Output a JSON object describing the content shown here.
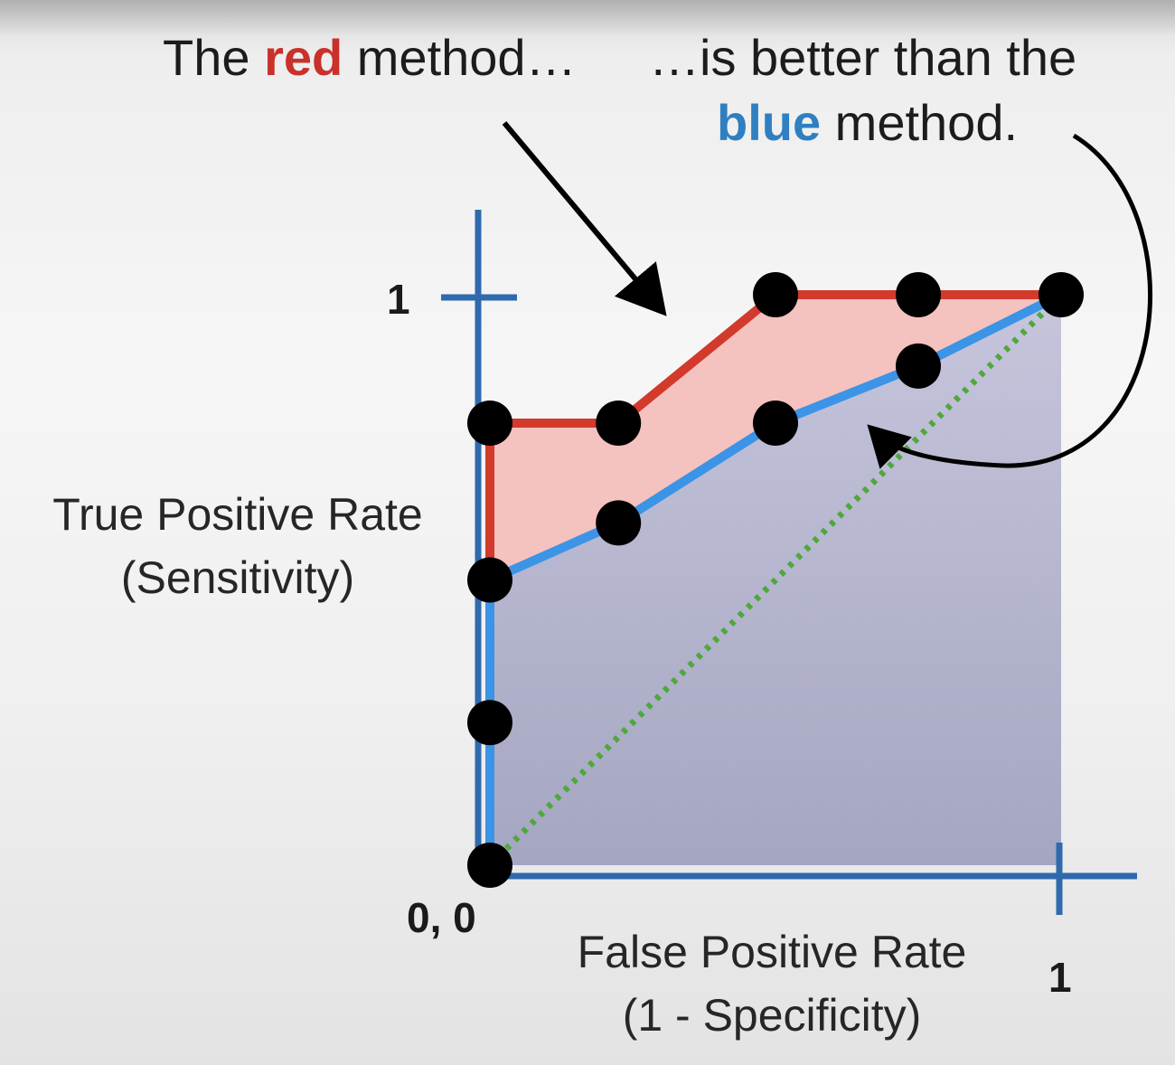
{
  "caption": {
    "left_prefix": "The ",
    "left_highlight": "red",
    "left_suffix": " method…",
    "right_line1": "…is better than the",
    "right_highlight": "blue",
    "right_suffix": " method."
  },
  "colors": {
    "red": "#d23a2c",
    "blue": "#3b94e6",
    "axis": "#2f6aad",
    "red_fill": "#f4c2bf",
    "blue_fill": "#c0bfd6",
    "diagonal": "#4ea83c",
    "points": "#000000"
  },
  "chart_data": {
    "type": "line",
    "title": "",
    "xlabel_line1": "False Positive Rate",
    "xlabel_line2": "(1 - Specificity)",
    "ylabel_line1": "True Positive Rate",
    "ylabel_line2": "(Sensitivity)",
    "origin_label": "0, 0",
    "xtick_label": "1",
    "ytick_label": "1",
    "xlim": [
      0,
      1
    ],
    "ylim": [
      0,
      1
    ],
    "grid": false,
    "legend": "none",
    "series": [
      {
        "name": "red",
        "color": "#d23a2c",
        "x": [
          0,
          0,
          0.225,
          0.5,
          1
        ],
        "y": [
          0.5,
          0.775,
          0.775,
          1,
          1
        ]
      },
      {
        "name": "blue",
        "color": "#3b94e6",
        "x": [
          0,
          0,
          0.225,
          0.5,
          0.75,
          1
        ],
        "y": [
          0,
          0.5,
          0.6,
          0.775,
          0.875,
          1
        ]
      },
      {
        "name": "diagonal",
        "color": "#4ea83c",
        "style": "dotted",
        "x": [
          0,
          1
        ],
        "y": [
          0,
          1
        ]
      }
    ],
    "points": [
      [
        0,
        0
      ],
      [
        0,
        0.25
      ],
      [
        0,
        0.5
      ],
      [
        0,
        0.775
      ],
      [
        0.225,
        0.775
      ],
      [
        0.225,
        0.6
      ],
      [
        0.5,
        0.775
      ],
      [
        0.5,
        1
      ],
      [
        0.75,
        0.875
      ],
      [
        0.75,
        1
      ],
      [
        1,
        1
      ]
    ]
  }
}
